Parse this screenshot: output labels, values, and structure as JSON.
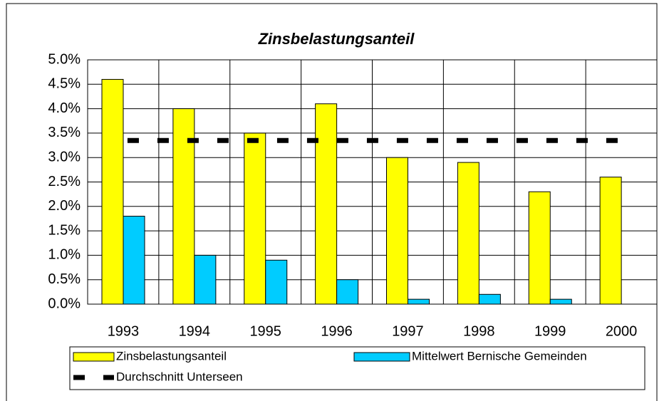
{
  "chart_data": {
    "type": "bar",
    "title": "Zinsbelastungsanteil",
    "categories": [
      "1993",
      "1994",
      "1995",
      "1996",
      "1997",
      "1998",
      "1999",
      "2000"
    ],
    "series": [
      {
        "name": "Zinsbelastungsanteil",
        "color": "#ffff00",
        "values": [
          4.6,
          4.0,
          3.5,
          4.1,
          3.0,
          2.9,
          2.3,
          2.6
        ]
      },
      {
        "name": "Mittelwert Bernische Gemeinden",
        "color": "#00ccff",
        "values": [
          1.8,
          1.0,
          0.9,
          0.5,
          0.1,
          0.2,
          0.1,
          null
        ]
      },
      {
        "name": "Durchschnitt Unterseen",
        "type": "line",
        "color": "#000000",
        "values": [
          3.35,
          3.35,
          3.35,
          3.35,
          3.35,
          3.35,
          3.35,
          3.35
        ]
      }
    ],
    "ylim": [
      0,
      5
    ],
    "yticks": [
      {
        "value": 0,
        "label": "0.0%"
      },
      {
        "value": 0.5,
        "label": "0.5%"
      },
      {
        "value": 1,
        "label": "1.0%"
      },
      {
        "value": 1.5,
        "label": "1.5%"
      },
      {
        "value": 2,
        "label": "2.0%"
      },
      {
        "value": 2.5,
        "label": "2.5%"
      },
      {
        "value": 3,
        "label": "3.0%"
      },
      {
        "value": 3.5,
        "label": "3.5%"
      },
      {
        "value": 4,
        "label": "4.0%"
      },
      {
        "value": 4.5,
        "label": "4.5%"
      },
      {
        "value": 5,
        "label": "5.0%"
      }
    ],
    "grid": true,
    "legend": "bottom"
  }
}
